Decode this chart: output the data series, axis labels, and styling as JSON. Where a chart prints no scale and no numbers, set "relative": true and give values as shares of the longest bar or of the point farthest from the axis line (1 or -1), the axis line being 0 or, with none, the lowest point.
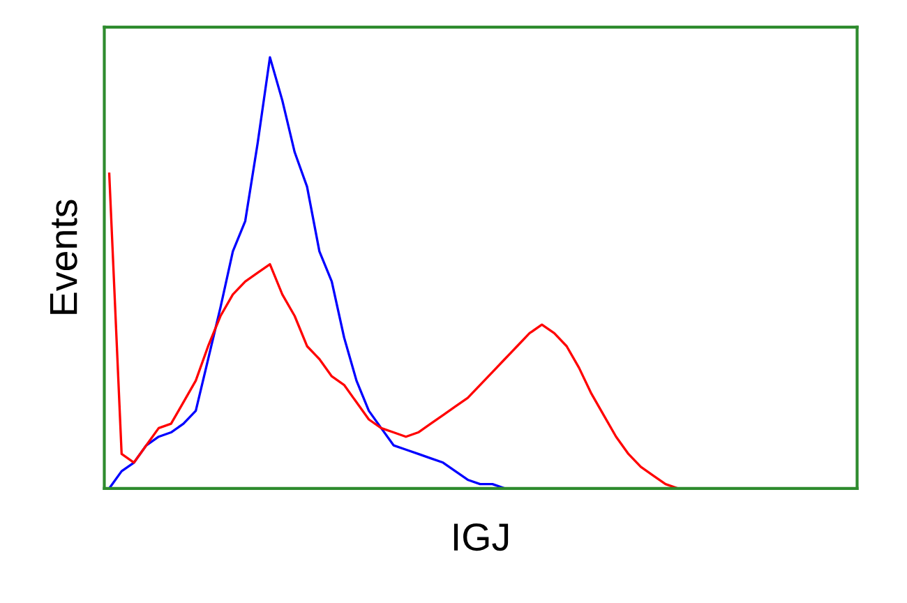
{
  "chart_data": {
    "type": "line",
    "xlabel": "IGJ",
    "ylabel": "Events",
    "relative": true,
    "grid": false,
    "legend": false,
    "marker": "none",
    "line_style": "solid",
    "categories": [
      null,
      null,
      null,
      null,
      null,
      null,
      null,
      null,
      null,
      null,
      null,
      null,
      null,
      null,
      null,
      null,
      null,
      null,
      null,
      null,
      null,
      null,
      null,
      null,
      null,
      null,
      null,
      null,
      null,
      null,
      null,
      null,
      null,
      null,
      null,
      null,
      null,
      null,
      null,
      null,
      null,
      null,
      null,
      null,
      null,
      null,
      null,
      null,
      null,
      null,
      null,
      null,
      null,
      null,
      null,
      null,
      null,
      null,
      null,
      null
    ],
    "series": [
      {
        "color": "#0000ff",
        "values": [
          0.0,
          0.04,
          0.06,
          0.1,
          0.12,
          0.13,
          0.15,
          0.18,
          0.3,
          0.42,
          0.55,
          0.62,
          0.8,
          1.0,
          0.9,
          0.78,
          0.7,
          0.55,
          0.48,
          0.35,
          0.25,
          0.18,
          0.14,
          0.1,
          0.09,
          0.08,
          0.07,
          0.06,
          0.04,
          0.02,
          0.01,
          0.01,
          0.0,
          null,
          null,
          null,
          null,
          null,
          null,
          null,
          null,
          null,
          null,
          null,
          null,
          null,
          null,
          null,
          null,
          null,
          null,
          null,
          null,
          null,
          null,
          null,
          null,
          null,
          null,
          null
        ]
      },
      {
        "color": "#ff0000",
        "values": [
          0.73,
          0.08,
          0.06,
          0.1,
          0.14,
          0.15,
          0.2,
          0.25,
          0.33,
          0.4,
          0.45,
          0.48,
          0.5,
          0.52,
          0.45,
          0.4,
          0.33,
          0.3,
          0.26,
          0.24,
          0.2,
          0.16,
          0.14,
          0.13,
          0.12,
          0.13,
          0.15,
          0.17,
          0.19,
          0.21,
          0.24,
          0.27,
          0.3,
          0.33,
          0.36,
          0.38,
          0.36,
          0.33,
          0.28,
          0.22,
          0.17,
          0.12,
          0.08,
          0.05,
          0.03,
          0.01,
          0.0,
          null,
          null,
          null,
          null,
          null,
          null,
          null,
          null,
          null,
          null,
          null,
          null,
          null
        ]
      }
    ]
  }
}
